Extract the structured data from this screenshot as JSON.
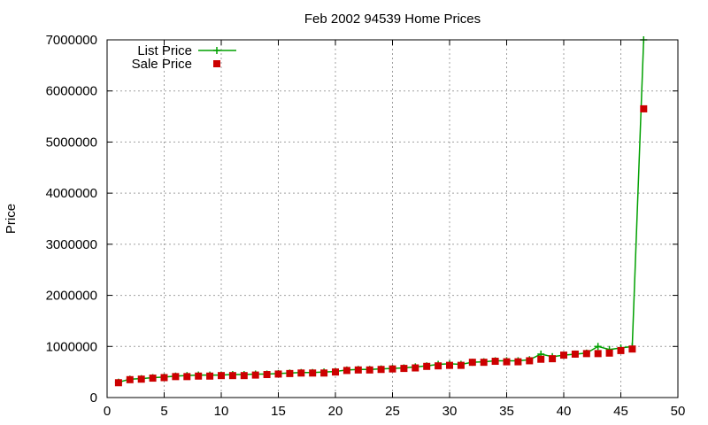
{
  "chart_data": {
    "type": "line",
    "title": "Feb 2002 94539 Home Prices",
    "xlabel": "",
    "ylabel": "Price",
    "xlim": [
      0,
      50
    ],
    "ylim": [
      0,
      7000000
    ],
    "xticks": [
      0,
      5,
      10,
      15,
      20,
      25,
      30,
      35,
      40,
      45,
      50
    ],
    "yticks": [
      0,
      1000000,
      2000000,
      3000000,
      4000000,
      5000000,
      6000000,
      7000000
    ],
    "grid": true,
    "legend_position": "top-left",
    "series": [
      {
        "name": "List Price",
        "color": "#00a000",
        "marker": "plus",
        "style": "line-points",
        "x": [
          1,
          2,
          3,
          4,
          5,
          6,
          7,
          8,
          9,
          10,
          11,
          12,
          13,
          14,
          15,
          16,
          17,
          18,
          19,
          20,
          21,
          22,
          23,
          24,
          25,
          26,
          27,
          28,
          29,
          30,
          31,
          32,
          33,
          34,
          35,
          36,
          37,
          38,
          39,
          40,
          41,
          42,
          43,
          44,
          45,
          46,
          47
        ],
        "y": [
          300000,
          360000,
          370000,
          390000,
          400000,
          420000,
          430000,
          440000,
          440000,
          440000,
          450000,
          450000,
          460000,
          460000,
          470000,
          480000,
          490000,
          490000,
          500000,
          510000,
          540000,
          550000,
          550000,
          560000,
          570000,
          580000,
          600000,
          620000,
          650000,
          660000,
          650000,
          690000,
          700000,
          720000,
          720000,
          720000,
          740000,
          850000,
          800000,
          830000,
          850000,
          870000,
          1000000,
          940000,
          970000,
          1000000,
          7000000
        ]
      },
      {
        "name": "Sale Price",
        "color": "#cc0000",
        "marker": "square",
        "style": "points",
        "x": [
          1,
          2,
          3,
          4,
          5,
          6,
          7,
          8,
          9,
          10,
          11,
          12,
          13,
          14,
          15,
          16,
          17,
          18,
          19,
          20,
          21,
          22,
          23,
          24,
          25,
          26,
          27,
          28,
          29,
          30,
          31,
          32,
          33,
          34,
          35,
          36,
          37,
          38,
          39,
          40,
          41,
          42,
          43,
          44,
          45,
          46,
          47
        ],
        "y": [
          290000,
          350000,
          360000,
          380000,
          390000,
          410000,
          410000,
          420000,
          420000,
          430000,
          430000,
          430000,
          440000,
          450000,
          460000,
          470000,
          480000,
          480000,
          480000,
          500000,
          530000,
          540000,
          540000,
          550000,
          560000,
          570000,
          580000,
          610000,
          620000,
          630000,
          630000,
          690000,
          690000,
          710000,
          700000,
          700000,
          720000,
          750000,
          760000,
          830000,
          850000,
          860000,
          860000,
          870000,
          920000,
          950000,
          5650000
        ]
      }
    ]
  }
}
